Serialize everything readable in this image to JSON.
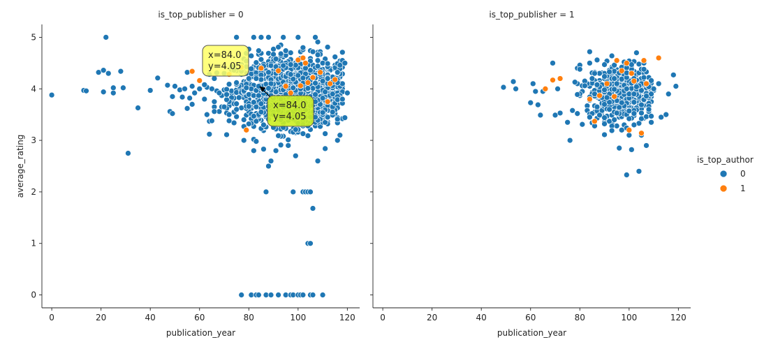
{
  "chart_data": {
    "type": "scatter",
    "panels": [
      {
        "title": "is_top_publisher = 0",
        "xlabel": "publication_year",
        "ylabel": "average_rating",
        "xlim": [
          -4,
          125
        ],
        "ylim": [
          -0.25,
          5.25
        ],
        "xticks": [
          "0",
          "20",
          "40",
          "60",
          "80",
          "100",
          "120"
        ],
        "yticks": [
          "0",
          "1",
          "2",
          "3",
          "4",
          "5"
        ],
        "points_author0": [
          [
            0,
            3.88
          ],
          [
            13,
            3.97
          ],
          [
            14,
            3.96
          ],
          [
            19,
            4.32
          ],
          [
            21,
            4.36
          ],
          [
            21,
            3.94
          ],
          [
            22,
            5.0
          ],
          [
            23,
            4.3
          ],
          [
            25,
            3.92
          ],
          [
            25,
            4.02
          ],
          [
            28,
            4.34
          ],
          [
            29,
            4.02
          ],
          [
            31,
            2.75
          ],
          [
            35,
            3.63
          ],
          [
            40,
            3.97
          ],
          [
            43,
            4.21
          ],
          [
            47,
            4.07
          ],
          [
            48,
            3.56
          ],
          [
            49,
            3.85
          ],
          [
            49,
            3.52
          ],
          [
            50,
            4.05
          ],
          [
            52,
            3.98
          ],
          [
            53,
            3.84
          ],
          [
            54,
            4.0
          ],
          [
            55,
            3.62
          ],
          [
            55,
            4.32
          ],
          [
            56,
            3.82
          ],
          [
            57,
            3.7
          ],
          [
            57,
            4.05
          ],
          [
            58,
            3.92
          ],
          [
            60,
            4.0
          ],
          [
            62,
            3.8
          ],
          [
            63,
            3.5
          ],
          [
            64,
            3.12
          ],
          [
            65,
            3.38
          ],
          [
            65,
            4.0
          ],
          [
            66,
            4.2
          ],
          [
            68,
            3.92
          ],
          [
            70,
            3.65
          ],
          [
            72,
            3.5
          ],
          [
            75,
            5.0
          ],
          [
            75,
            3.6
          ],
          [
            77,
            0.0
          ],
          [
            78,
            3.0
          ],
          [
            80,
            4.2
          ],
          [
            81,
            0.0
          ],
          [
            82,
            2.8
          ],
          [
            82,
            5.0
          ],
          [
            83,
            0.0
          ],
          [
            84,
            4.05
          ],
          [
            84,
            0.0
          ],
          [
            85,
            5.0
          ],
          [
            86,
            3.3
          ],
          [
            87,
            2.0
          ],
          [
            87,
            0.0
          ],
          [
            88,
            2.5
          ],
          [
            88,
            5.0
          ],
          [
            89,
            2.6
          ],
          [
            89,
            0.0
          ],
          [
            90,
            3.5
          ],
          [
            91,
            2.8
          ],
          [
            92,
            0.0
          ],
          [
            93,
            3.4
          ],
          [
            94,
            5.0
          ],
          [
            95,
            0.0
          ],
          [
            96,
            2.9
          ],
          [
            97,
            0.0
          ],
          [
            98,
            2.0
          ],
          [
            98,
            0.0
          ],
          [
            99,
            2.7
          ],
          [
            100,
            5.0
          ],
          [
            100,
            0.0
          ],
          [
            101,
            0.0
          ],
          [
            102,
            2.0
          ],
          [
            102,
            0.0
          ],
          [
            103,
            2.0
          ],
          [
            104,
            1.0
          ],
          [
            104,
            2.0
          ],
          [
            105,
            1.0
          ],
          [
            105,
            2.0
          ],
          [
            105,
            0.0
          ],
          [
            106,
            1.68
          ],
          [
            106,
            0.0
          ],
          [
            107,
            5.0
          ],
          [
            108,
            2.6
          ],
          [
            110,
            0.0
          ],
          [
            111,
            2.84
          ],
          [
            112,
            4.2
          ],
          [
            114,
            3.9
          ],
          [
            116,
            3.0
          ],
          [
            117,
            3.1
          ],
          [
            118,
            3.8
          ],
          [
            119,
            4.5
          ],
          [
            119,
            3.44
          ],
          [
            120,
            3.92
          ]
        ],
        "points_author1": [
          [
            57,
            4.34
          ],
          [
            60,
            4.16
          ],
          [
            72,
            4.28
          ],
          [
            77,
            4.42
          ],
          [
            79,
            3.2
          ],
          [
            85,
            4.4
          ],
          [
            92,
            4.35
          ],
          [
            95,
            4.05
          ],
          [
            97,
            3.92
          ],
          [
            100,
            4.56
          ],
          [
            101,
            4.06
          ],
          [
            102,
            4.6
          ],
          [
            103,
            4.5
          ],
          [
            104,
            4.12
          ],
          [
            106,
            4.22
          ],
          [
            109,
            4.32
          ],
          [
            112,
            3.75
          ],
          [
            113,
            4.1
          ],
          [
            115,
            4.18
          ]
        ],
        "dense_cluster": {
          "x_range": [
            62,
            118
          ],
          "y_range": [
            2.8,
            4.95
          ],
          "center": [
            98,
            3.95
          ]
        },
        "annotations": [
          {
            "text": "x=84.0\ny=4.05",
            "style": "yellow"
          },
          {
            "text": "x=84.0\ny=4.05",
            "style": "yellowgreen"
          }
        ]
      },
      {
        "title": "is_top_publisher = 1",
        "xlabel": "publication_year",
        "ylabel": "",
        "xlim": [
          -4,
          125
        ],
        "ylim": [
          -0.25,
          5.25
        ],
        "xticks": [
          "0",
          "20",
          "40",
          "60",
          "80",
          "100",
          "120"
        ],
        "points_author0": [
          [
            49,
            4.03
          ],
          [
            53,
            4.14
          ],
          [
            54,
            4.0
          ],
          [
            60,
            3.73
          ],
          [
            61,
            4.1
          ],
          [
            62,
            3.95
          ],
          [
            63,
            3.69
          ],
          [
            64,
            3.49
          ],
          [
            65,
            3.95
          ],
          [
            69,
            4.5
          ],
          [
            70,
            3.49
          ],
          [
            71,
            4.0
          ],
          [
            72,
            3.53
          ],
          [
            75,
            3.35
          ],
          [
            76,
            3.0
          ],
          [
            78,
            4.13
          ],
          [
            79,
            3.89
          ],
          [
            81,
            3.31
          ],
          [
            82,
            4.06
          ],
          [
            84,
            4.72
          ],
          [
            86,
            4.3
          ],
          [
            88,
            3.49
          ],
          [
            90,
            3.32
          ],
          [
            92,
            3.6
          ],
          [
            94,
            3.4
          ],
          [
            96,
            2.85
          ],
          [
            97,
            3.2
          ],
          [
            99,
            2.33
          ],
          [
            100,
            3.1
          ],
          [
            101,
            2.82
          ],
          [
            102,
            3.3
          ],
          [
            103,
            4.7
          ],
          [
            104,
            2.4
          ],
          [
            105,
            3.1
          ],
          [
            106,
            4.5
          ],
          [
            107,
            2.9
          ],
          [
            108,
            3.6
          ],
          [
            110,
            4.0
          ],
          [
            112,
            4.1
          ],
          [
            113,
            3.45
          ],
          [
            115,
            3.5
          ],
          [
            116,
            3.9
          ],
          [
            118,
            4.27
          ],
          [
            119,
            4.05
          ]
        ],
        "points_author1": [
          [
            66,
            4.0
          ],
          [
            69,
            4.17
          ],
          [
            72,
            4.2
          ],
          [
            84,
            3.8
          ],
          [
            86,
            3.37
          ],
          [
            88,
            3.87
          ],
          [
            91,
            4.1
          ],
          [
            94,
            3.85
          ],
          [
            95,
            4.55
          ],
          [
            97,
            4.35
          ],
          [
            99,
            4.5
          ],
          [
            100,
            3.2
          ],
          [
            101,
            4.3
          ],
          [
            102,
            4.15
          ],
          [
            105,
            3.14
          ],
          [
            106,
            4.55
          ],
          [
            107,
            4.1
          ],
          [
            112,
            4.6
          ]
        ],
        "dense_cluster": {
          "x_range": [
            76,
            110
          ],
          "y_range": [
            3.0,
            4.65
          ],
          "center": [
            97,
            3.95
          ]
        },
        "annotations": []
      }
    ],
    "legend": {
      "title": "is_top_author",
      "placement": "right",
      "entries": [
        {
          "label": "0",
          "color": "#1f77b4"
        },
        {
          "label": "1",
          "color": "#ff7f0e"
        }
      ]
    },
    "colors": {
      "author0": "#1f77b4",
      "author1": "#ff7f0e"
    }
  }
}
